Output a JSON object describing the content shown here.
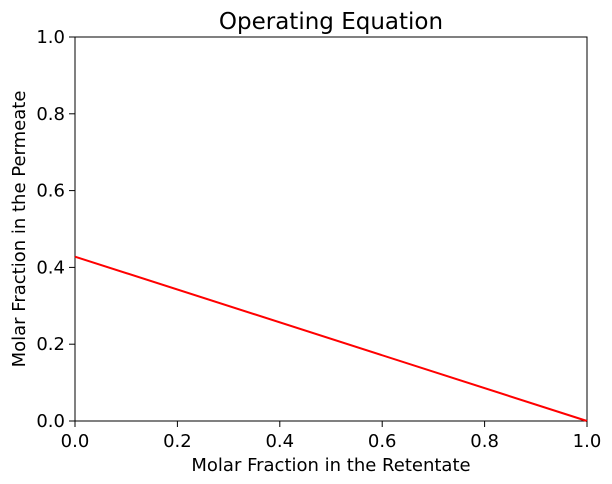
{
  "chart_data": {
    "type": "line",
    "title": "Operating Equation",
    "xlabel": "Molar Fraction in the Retentate",
    "ylabel": "Molar Fraction in the Permeate",
    "xlim": [
      0,
      1
    ],
    "ylim": [
      0,
      1
    ],
    "xticks": [
      "0.0",
      "0.2",
      "0.4",
      "0.6",
      "0.8",
      "1.0"
    ],
    "yticks": [
      "0.0",
      "0.2",
      "0.4",
      "0.6",
      "0.8",
      "1.0"
    ],
    "grid": false,
    "series": [
      {
        "x": [
          0.0,
          1.0
        ],
        "y": [
          0.428,
          0.0
        ],
        "color": "#ff0000"
      }
    ]
  }
}
